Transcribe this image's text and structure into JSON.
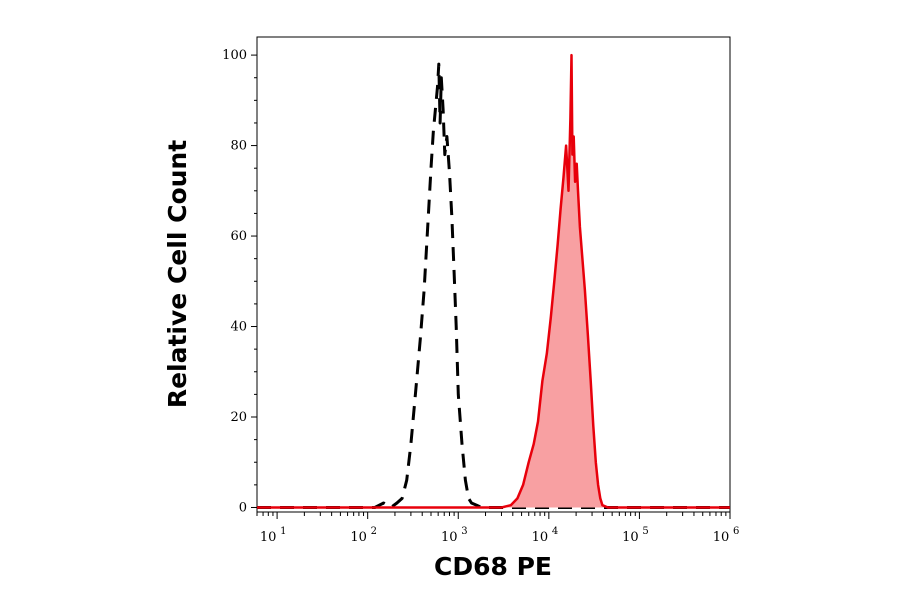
{
  "chart_data": {
    "type": "area",
    "xlabel": "CD68 PE",
    "ylabel": "Relative Cell Count",
    "xscale": "log",
    "xlim": [
      6,
      1000000
    ],
    "ylim": [
      -1,
      104
    ],
    "x_ticks": [
      {
        "base": "10",
        "exp": "1",
        "value": 10
      },
      {
        "base": "10",
        "exp": "2",
        "value": 100
      },
      {
        "base": "10",
        "exp": "3",
        "value": 1000
      },
      {
        "base": "10",
        "exp": "4",
        "value": 10000
      },
      {
        "base": "10",
        "exp": "5",
        "value": 100000
      },
      {
        "base": "10",
        "exp": "6",
        "value": 1000000
      }
    ],
    "y_ticks": [
      "0",
      "20",
      "40",
      "60",
      "80",
      "100"
    ],
    "series": [
      {
        "style": "dashed",
        "color": "#000000",
        "fill": "none",
        "x": [
          6,
          120,
          150,
          180,
          210,
          240,
          270,
          300,
          340,
          380,
          420,
          460,
          500,
          530,
          560,
          590,
          610,
          630,
          650,
          680,
          710,
          750,
          800,
          850,
          900,
          950,
          1000,
          1100,
          1200,
          1300,
          1400,
          1600,
          1800,
          2000,
          1000000
        ],
        "y": [
          0,
          0,
          1,
          0,
          1,
          2,
          6,
          14,
          26,
          37,
          48,
          62,
          75,
          83,
          88,
          93,
          98,
          85,
          95,
          88,
          78,
          82,
          74,
          64,
          52,
          40,
          25,
          14,
          6,
          2,
          1,
          0.5,
          0,
          0,
          0
        ]
      },
      {
        "style": "solid",
        "color": "#e8000b",
        "fill": "#f8a0a2",
        "x": [
          6,
          3000,
          3800,
          4500,
          5200,
          6000,
          6800,
          7600,
          8500,
          9500,
          10500,
          11500,
          12500,
          13500,
          14500,
          15500,
          16500,
          17300,
          17800,
          18200,
          18800,
          19500,
          20300,
          21000,
          22000,
          23500,
          25000,
          27000,
          29000,
          31000,
          33000,
          35000,
          37000,
          39000,
          45000,
          1000000
        ],
        "y": [
          0,
          0,
          0.5,
          2,
          5,
          10,
          14,
          19,
          28,
          34,
          42,
          50,
          58,
          66,
          73,
          80,
          70,
          86,
          100,
          78,
          82,
          72,
          76,
          70,
          62,
          55,
          48,
          38,
          28,
          18,
          10,
          5,
          2,
          0.5,
          0,
          0
        ]
      }
    ]
  }
}
